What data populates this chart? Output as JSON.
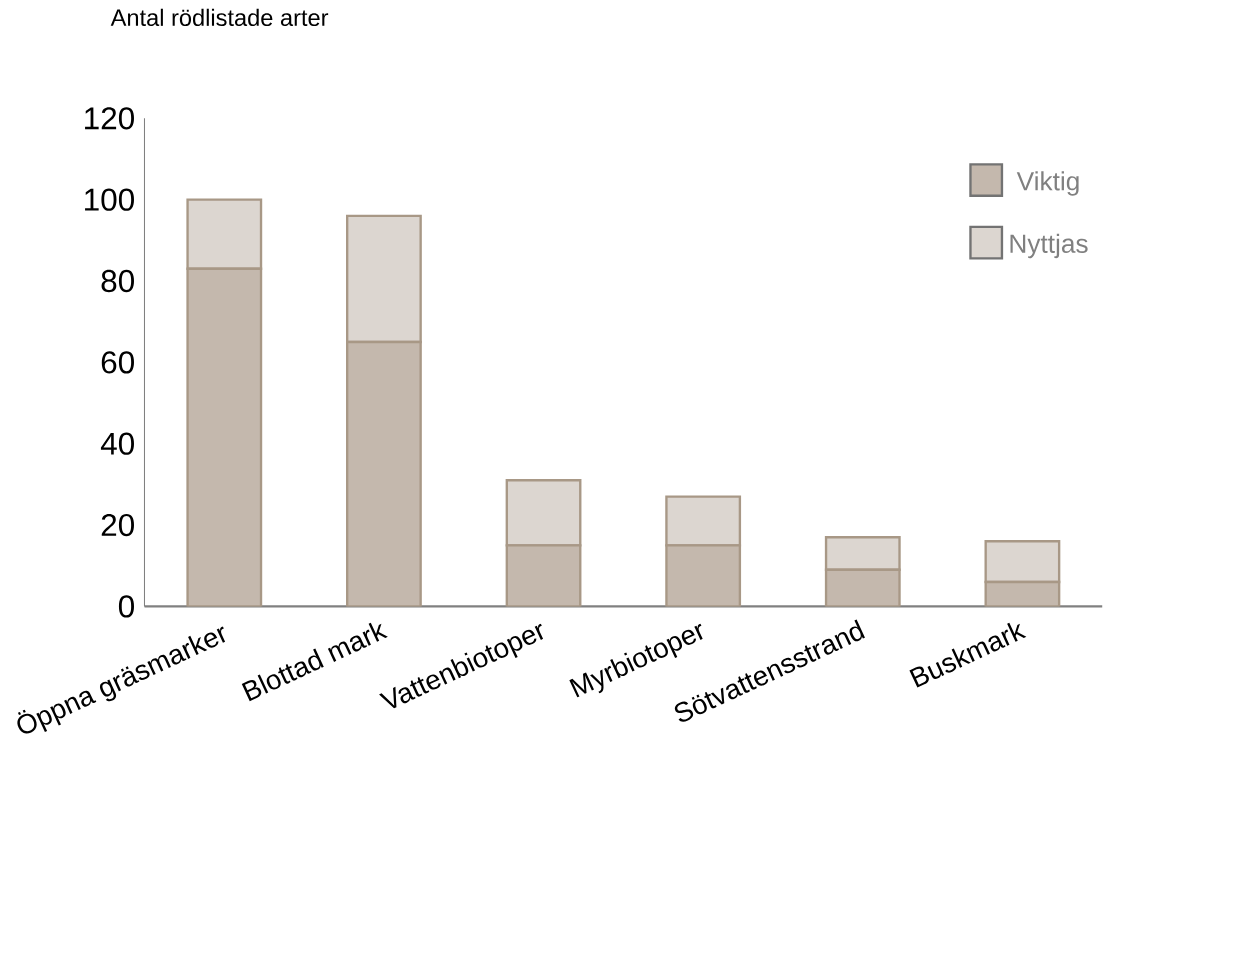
{
  "chart_data": {
    "type": "bar",
    "stacked": true,
    "ylabel": "Antal rödlistade arter",
    "categories": [
      "Öppna gräsmarker",
      "Blottad mark",
      "Vattenbiotoper",
      "Myrbiotoper",
      "Sötvattensstrand",
      "Buskmark"
    ],
    "series": [
      {
        "name": "Viktig",
        "color": "#c4b8ad",
        "values": [
          83,
          65,
          15,
          15,
          9,
          6
        ]
      },
      {
        "name": "Nyttjas",
        "color": "#dcd6d0",
        "values": [
          17,
          31,
          16,
          12,
          8,
          10
        ]
      }
    ],
    "ylim": [
      0,
      120
    ],
    "yticks": [
      0,
      20,
      40,
      60,
      80,
      100,
      120
    ],
    "grid": false,
    "legend": "top right"
  }
}
